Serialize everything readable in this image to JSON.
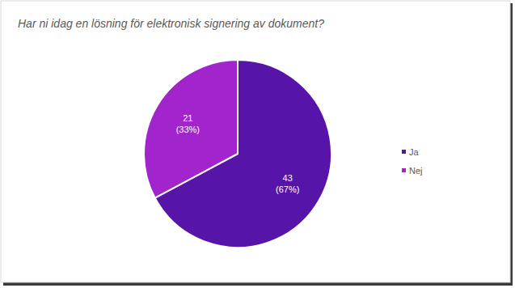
{
  "chart_data": {
    "type": "pie",
    "title": "Har ni idag en lösning för elektronisk signering av dokument?",
    "categories": [
      "Ja",
      "Nej"
    ],
    "values": [
      43,
      21
    ],
    "value_labels": [
      "43\n(67%)",
      "21\n(33%)"
    ],
    "colors": [
      "#5614a9",
      "#a224cc"
    ],
    "data_labels": true,
    "legend": "right"
  }
}
